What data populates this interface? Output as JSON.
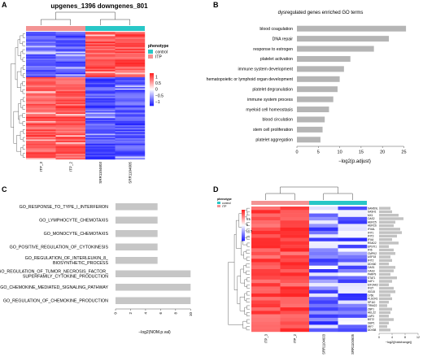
{
  "panels": {
    "a": {
      "letter": "A",
      "title": "upgenes_1396 downgenes_801",
      "legend_title": "phenotype",
      "legend_items": [
        {
          "label": "control",
          "color": "#28c7c7"
        },
        {
          "label": "ITP",
          "color": "#f39393"
        }
      ],
      "colorbar_ticks": [
        "1",
        "0.5",
        "0",
        "−0.5",
        "−1"
      ],
      "sample_labels": [
        "ITP_3",
        "ITP_2",
        "SRR1104603",
        "SRR1104605"
      ],
      "sample_groups": [
        "ITP",
        "ITP",
        "control",
        "control"
      ],
      "split_fraction": 0.36
    },
    "d": {
      "letter": "D",
      "legend_title": "phenotype",
      "legend_items": [
        {
          "label": "control",
          "color": "#28c7c7"
        },
        {
          "label": "ITP",
          "color": "#f39393"
        }
      ],
      "colorbar_ticks": [
        "1",
        "0.5",
        "0",
        "−0.5",
        "−1"
      ],
      "sample_labels": [
        "ITP_3",
        "ITP_2",
        "SRR1104603",
        "SRR1104605"
      ],
      "genes": [
        "SAMD9L",
        "SASH1",
        "MX1",
        "OAS2",
        "HERC5",
        "HERC6",
        "IFI44L",
        "IFIT1",
        "IFIT3",
        "IFI44",
        "RSAD2",
        "EPSTI1",
        "IFI6",
        "CMPK2",
        "USP18",
        "IFIT2",
        "DDX60",
        "OAS1",
        "OAS3",
        "PARP9",
        "STAT1",
        "XAF1",
        "EIF2AK2",
        "IFI27",
        "ISG15",
        "LY6E",
        "PLSCR1",
        "SP110",
        "TRIM22",
        "ZBP1",
        "HELZ2",
        "LAP3",
        "BST2",
        "GBP1",
        "IRF7",
        "DDX58"
      ],
      "bar_values": [
        3.5,
        4.0,
        6.0,
        7.5,
        5.0,
        4.5,
        6.5,
        7.0,
        5.5,
        4.0,
        6.0,
        3.0,
        4.5,
        5.0,
        3.5,
        4.0,
        3.0,
        5.0,
        4.5,
        3.5,
        5.5,
        4.0,
        3.0,
        4.5,
        5.0,
        3.5,
        4.0,
        3.0,
        2.5,
        4.0,
        3.5,
        3.0,
        4.5,
        3.0,
        2.5,
        3.5
      ],
      "bar_axis_ticks": [
        "0",
        "4",
        "8",
        "12"
      ],
      "bar_axis_max": 12,
      "bar_axis_label": "−log2(|foldchange|)"
    }
  },
  "chart_data": [
    {
      "panel": "B",
      "type": "bar",
      "orientation": "horizontal",
      "title": "dysregulated genes enriched GO terms",
      "categories": [
        "blood coagulation",
        "DNA repair",
        "response to estrogen",
        "platelet activation",
        "immune system development",
        "hematopoietic or lymphoid organ development",
        "platelet degranulation",
        "immune system process",
        "myeloid cell homeostasis",
        "blood circulation",
        "stem cell proliferation",
        "platelet aggregation"
      ],
      "values": [
        25.5,
        21.5,
        18,
        12.5,
        11,
        10,
        9.5,
        8.5,
        7.5,
        6.5,
        6,
        5.5
      ],
      "xlabel": "−log2(p.adjust)",
      "xlim": [
        0,
        27
      ],
      "xticks": [
        "0",
        "5",
        "10",
        "15",
        "20",
        "25"
      ],
      "bar_color": "#b5b5b5",
      "grid": false
    },
    {
      "panel": "C",
      "type": "bar",
      "orientation": "horizontal",
      "categories": [
        "GO_RESPONSE_TO_TYPE_I_INTERFERON",
        "GO_LYMPHOCYTE_CHEMOTAXIS",
        "GO_MONOCYTE_CHEMOTAXIS",
        "GO_POSITIVE_REGULATION_OF_CYTOKINESIS",
        "GO_REGULATION_OF_INTERLEUKIN_8_\nBIOSYNTHETIC_PROCESS",
        "GO_REGULATION_OF_TUMOR_NECROSIS_FACTOR_\nSUPERFAMILY_CYTOKINE_PRODUCTION",
        "GO_CHEMOKINE_MEDIATED_SIGNALING_PATHWAY",
        "GO_REGULATION_OF_CHEMOKINE_PRODUCTION"
      ],
      "values": [
        5.6,
        5.6,
        5.6,
        5.6,
        5.6,
        10,
        10,
        10
      ],
      "xlabel": "−log2(NOM.p.val)",
      "xlim": [
        0,
        10.4
      ],
      "xticks": [
        "0",
        "2",
        "4",
        "6",
        "8",
        "10"
      ],
      "bar_color": "#c6c6c6",
      "grid": false
    }
  ]
}
